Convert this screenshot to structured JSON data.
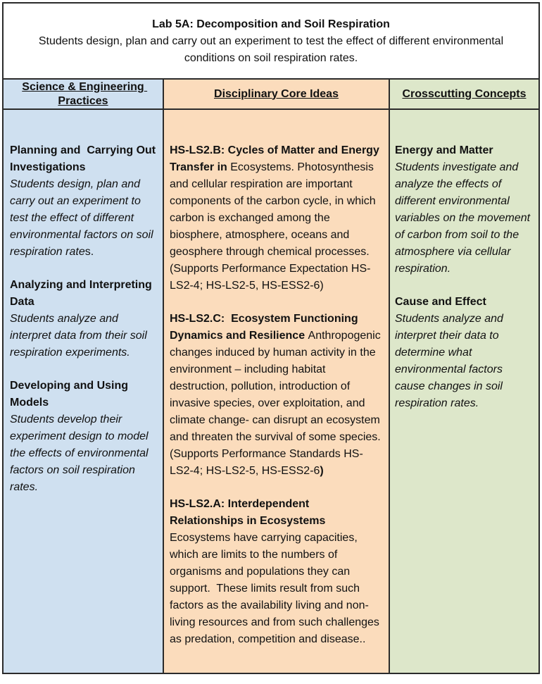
{
  "title": {
    "heading": "Lab 5A: Decomposition and Soil Respiration",
    "subtitle": "Students design, plan and carry out an experiment to test the effect of different environmental conditions on soil respiration rates."
  },
  "columns": {
    "sep": {
      "header": "Science & Engineering Practices",
      "blocks": [
        {
          "heading": "Planning and  Carrying Out Investigations",
          "body": "Students design, plan and carry out an experiment to test the effect of different environmental factors on soil respiration rate",
          "body_tail": "s."
        },
        {
          "heading": "Analyzing and Interpreting Data",
          "body": "Students analyze and interpret data from their soil respiration experiments."
        },
        {
          "heading": "Developing and Using Models",
          "body": "Students develop their experiment design to model the effects of environmental factors on soil respiration rates."
        }
      ]
    },
    "dci": {
      "header": "Disciplinary Core Ideas",
      "blocks": [
        {
          "lead_bold": "HS-LS2.B: Cycles of Matter and Energy Transfer in ",
          "body": "Ecosystems. Photosynthesis and cellular respiration are important components of the carbon cycle, in which carbon is exchanged among the biosphere, atmosphere, oceans and geosphere through chemical processes. (Supports Performance Expectation HS-LS2-4; HS-LS2-5, HS-ESS2-6)"
        },
        {
          "lead_bold": "HS-LS2.C:  Ecosystem Functioning Dynamics and Resilience ",
          "body": "Anthropogenic changes induced by human activity in the environment – including habitat destruction, pollution, introduction of invasive species, over exploitation, and climate change- can disrupt an ecosystem and threaten the survival of some species. (Supports Performance Standards HS-LS2-4; HS-LS2-5, HS-ESS2-6",
          "tail_bold": ")"
        },
        {
          "lead_bold": "HS-LS2.A: Interdependent Relationships in Ecosystems ",
          "body": "Ecosystems have carrying capacities, which are limits to the numbers of organisms and populations they can support.  These limits result from such factors as the availability living and non-living resources and from such challenges as predation, competition and disease.."
        }
      ]
    },
    "ccc": {
      "header": "Crosscutting Concepts",
      "blocks": [
        {
          "heading": "Energy and Matter",
          "body": "Students investigate and analyze the effects of different environmental variables on the movement of carbon from soil to the atmosphere via cellular respiration."
        },
        {
          "heading": "Cause and Effect",
          "body": "Students analyze and interpret their data to determine what environmental factors cause changes in soil respiration rates."
        }
      ]
    }
  },
  "colors": {
    "sep_bg": "#cfe0f0",
    "dci_bg": "#fbdcbc",
    "ccc_bg": "#dde7ca",
    "border": "#2b2b2b"
  }
}
